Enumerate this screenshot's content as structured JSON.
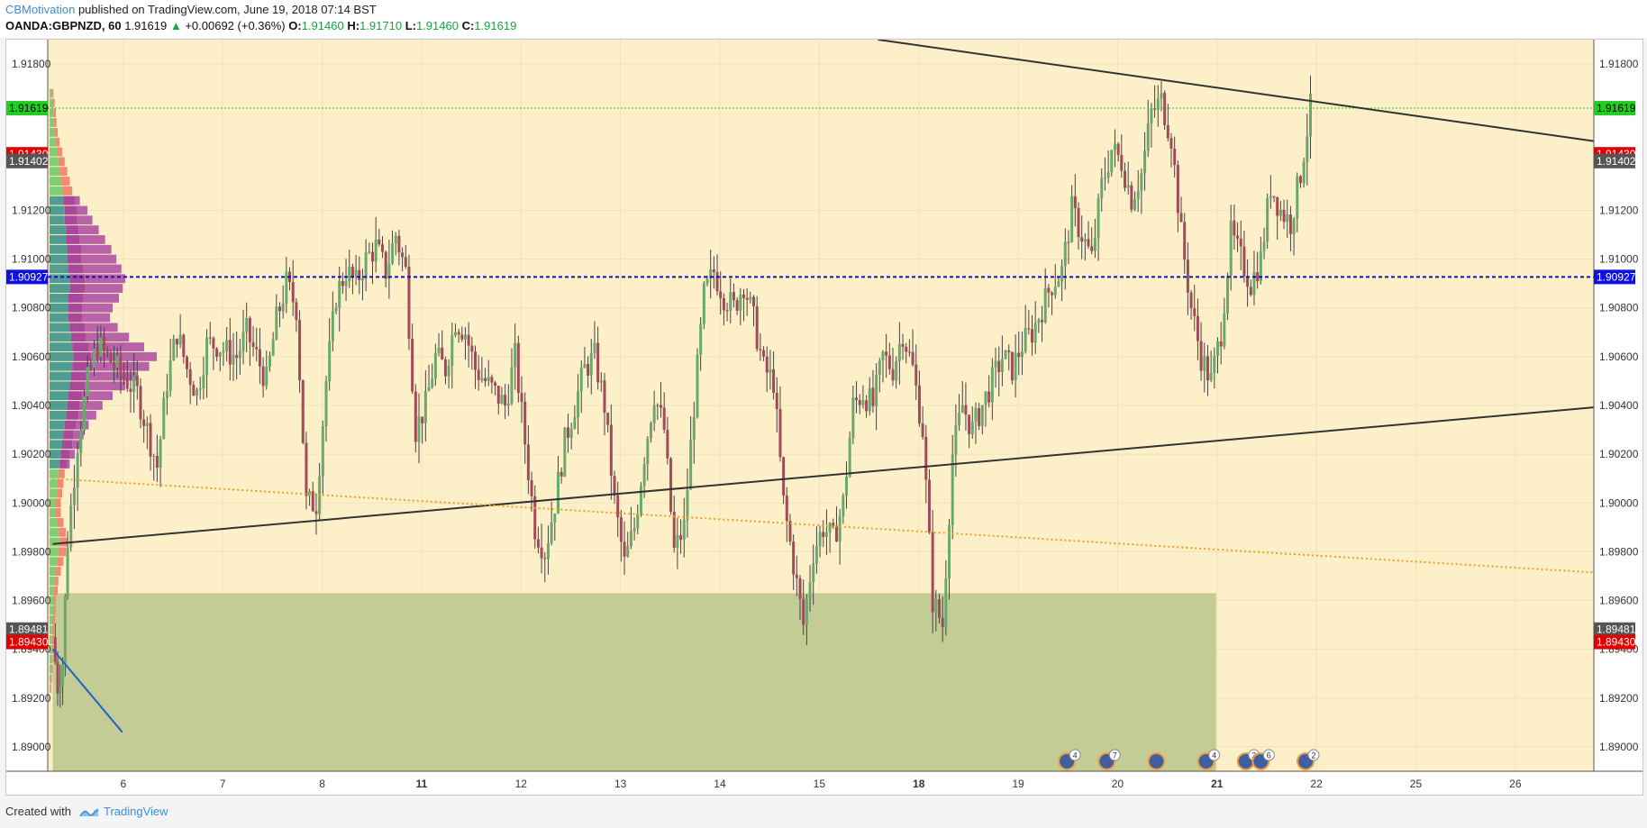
{
  "header": {
    "author": "CBMotivation",
    "published": "published on TradingView.com, June 19, 2018 07:14 BST",
    "symbol": "OANDA:GBPNZD, 60",
    "last": "1.91619",
    "change": "+0.00692 (+0.36%)",
    "o_label": "O:",
    "o_value": "1.91460",
    "h_label": "H:",
    "h_value": "1.91710",
    "l_label": "L:",
    "l_value": "1.91460",
    "c_label": "C:",
    "c_value": "1.91619"
  },
  "footer": {
    "created_with": "Created with",
    "brand": "TradingView"
  },
  "colors": {
    "background_band": "#fdf0c8",
    "zone": "#c2cc94",
    "bull": "#6aa96c",
    "bear": "#a24a5a",
    "price_tag": "#22cc22",
    "red_tag": "#e00000",
    "blue_tag": "#1010e0",
    "dark_tag": "#555555",
    "trendline": "#333333",
    "orange_dotted": "#f0a020",
    "blue_line": "#2060d0"
  },
  "chart_data": {
    "type": "candlestick",
    "ylim": [
      1.889,
      1.919
    ],
    "y_ticks": [
      "1.91800",
      "1.91200",
      "1.91000",
      "1.90800",
      "1.90600",
      "1.90400",
      "1.90200",
      "1.90000",
      "1.89800",
      "1.89600",
      "1.89400",
      "1.89200",
      "1.89000"
    ],
    "x_ticks": [
      {
        "label": "6",
        "bold": false,
        "xv": 0.71
      },
      {
        "label": "7",
        "bold": false,
        "xv": 1.71
      },
      {
        "label": "8",
        "bold": false,
        "xv": 2.71
      },
      {
        "label": "11",
        "bold": true,
        "xv": 3.71
      },
      {
        "label": "12",
        "bold": false,
        "xv": 4.71
      },
      {
        "label": "13",
        "bold": false,
        "xv": 5.71
      },
      {
        "label": "14",
        "bold": false,
        "xv": 6.71
      },
      {
        "label": "15",
        "bold": false,
        "xv": 7.71
      },
      {
        "label": "18",
        "bold": true,
        "xv": 8.71
      },
      {
        "label": "19",
        "bold": false,
        "xv": 9.71
      },
      {
        "label": "20",
        "bold": false,
        "xv": 10.71
      },
      {
        "label": "21",
        "bold": true,
        "xv": 11.71
      },
      {
        "label": "22",
        "bold": false,
        "xv": 12.71
      },
      {
        "label": "25",
        "bold": false,
        "xv": 13.71
      },
      {
        "label": "26",
        "bold": false,
        "xv": 14.71
      }
    ],
    "xlim": [
      -0.05,
      15.5
    ],
    "price_labels": [
      {
        "text": "1.91619",
        "y": 1.91619,
        "kind": "green"
      },
      {
        "text": "1.91430",
        "y": 1.9143,
        "kind": "red"
      },
      {
        "text": "1.91402",
        "y": 1.91402,
        "kind": "dark"
      },
      {
        "text": "1.90927",
        "y": 1.90927,
        "kind": "blue"
      },
      {
        "text": "1.89481",
        "y": 1.89481,
        "kind": "dark"
      },
      {
        "text": "1.89430",
        "y": 1.8943,
        "kind": "red"
      }
    ],
    "current_price": 1.91619,
    "horizontal_level": 1.90927,
    "zone": {
      "x0": 0.0,
      "x1": 11.7,
      "y_top": 1.8963,
      "y_bottom": 1.889
    },
    "trendlines": [
      {
        "x0": 0.0,
        "y0": 1.89832,
        "x1": 15.5,
        "y1": 1.90392,
        "style": "solid"
      },
      {
        "x0": 8.3,
        "y0": 1.919,
        "x1": 15.5,
        "y1": 1.91484,
        "style": "solid"
      },
      {
        "x0": 0.0,
        "y0": 1.901,
        "x1": 15.5,
        "y1": 1.89715,
        "style": "dotted"
      },
      {
        "x0": 0.0,
        "y0": 1.894,
        "x1": 0.7,
        "y1": 1.8906,
        "style": "blue"
      }
    ],
    "event_markers": [
      {
        "xv": 10.2,
        "count": "4"
      },
      {
        "xv": 10.6,
        "count": "7"
      },
      {
        "xv": 11.1,
        "count": ""
      },
      {
        "xv": 11.6,
        "count": "4"
      },
      {
        "xv": 12.0,
        "count": "3"
      },
      {
        "xv": 12.15,
        "count": "6"
      },
      {
        "xv": 12.6,
        "count": "2"
      }
    ],
    "volume_profile": [
      {
        "y": 1.9168,
        "g": 0.02,
        "r": 0.01,
        "v": 0
      },
      {
        "y": 1.9164,
        "g": 0.025,
        "r": 0.015,
        "v": 0
      },
      {
        "y": 1.916,
        "g": 0.03,
        "r": 0.02,
        "v": 0
      },
      {
        "y": 1.9156,
        "g": 0.035,
        "r": 0.02,
        "v": 0
      },
      {
        "y": 1.9152,
        "g": 0.04,
        "r": 0.025,
        "v": 0
      },
      {
        "y": 1.9148,
        "g": 0.05,
        "r": 0.03,
        "v": 0
      },
      {
        "y": 1.9144,
        "g": 0.06,
        "r": 0.04,
        "v": 0
      },
      {
        "y": 1.914,
        "g": 0.07,
        "r": 0.05,
        "v": 0
      },
      {
        "y": 1.9136,
        "g": 0.08,
        "r": 0.06,
        "v": 0
      },
      {
        "y": 1.9132,
        "g": 0.09,
        "r": 0.07,
        "v": 0
      },
      {
        "y": 1.9128,
        "g": 0.1,
        "r": 0.08,
        "v": 0
      },
      {
        "y": 1.9124,
        "g": 0.11,
        "r": 0.09,
        "v": 0.04
      },
      {
        "y": 1.912,
        "g": 0.12,
        "r": 0.1,
        "v": 0.08
      },
      {
        "y": 1.9116,
        "g": 0.12,
        "r": 0.1,
        "v": 0.12
      },
      {
        "y": 1.9112,
        "g": 0.13,
        "r": 0.1,
        "v": 0.16
      },
      {
        "y": 1.9108,
        "g": 0.13,
        "r": 0.11,
        "v": 0.2
      },
      {
        "y": 1.9104,
        "g": 0.14,
        "r": 0.11,
        "v": 0.24
      },
      {
        "y": 1.91,
        "g": 0.14,
        "r": 0.11,
        "v": 0.28
      },
      {
        "y": 1.9096,
        "g": 0.15,
        "r": 0.12,
        "v": 0.3
      },
      {
        "y": 1.9092,
        "g": 0.16,
        "r": 0.12,
        "v": 0.32
      },
      {
        "y": 1.9088,
        "g": 0.16,
        "r": 0.12,
        "v": 0.3
      },
      {
        "y": 1.9084,
        "g": 0.15,
        "r": 0.12,
        "v": 0.28
      },
      {
        "y": 1.908,
        "g": 0.15,
        "r": 0.11,
        "v": 0.24
      },
      {
        "y": 1.9076,
        "g": 0.15,
        "r": 0.11,
        "v": 0.22
      },
      {
        "y": 1.9072,
        "g": 0.16,
        "r": 0.12,
        "v": 0.26
      },
      {
        "y": 1.9068,
        "g": 0.17,
        "r": 0.12,
        "v": 0.34
      },
      {
        "y": 1.9064,
        "g": 0.18,
        "r": 0.13,
        "v": 0.44
      },
      {
        "y": 1.906,
        "g": 0.19,
        "r": 0.14,
        "v": 0.52
      },
      {
        "y": 1.9056,
        "g": 0.18,
        "r": 0.13,
        "v": 0.48
      },
      {
        "y": 1.9052,
        "g": 0.17,
        "r": 0.12,
        "v": 0.4
      },
      {
        "y": 1.9048,
        "g": 0.16,
        "r": 0.12,
        "v": 0.32
      },
      {
        "y": 1.9044,
        "g": 0.15,
        "r": 0.11,
        "v": 0.24
      },
      {
        "y": 1.904,
        "g": 0.14,
        "r": 0.1,
        "v": 0.18
      },
      {
        "y": 1.9036,
        "g": 0.13,
        "r": 0.1,
        "v": 0.14
      },
      {
        "y": 1.9032,
        "g": 0.12,
        "r": 0.09,
        "v": 0.1
      },
      {
        "y": 1.9028,
        "g": 0.11,
        "r": 0.08,
        "v": 0.08
      },
      {
        "y": 1.9024,
        "g": 0.1,
        "r": 0.08,
        "v": 0.06
      },
      {
        "y": 1.902,
        "g": 0.09,
        "r": 0.07,
        "v": 0.04
      },
      {
        "y": 1.9016,
        "g": 0.08,
        "r": 0.06,
        "v": 0.02
      },
      {
        "y": 1.9012,
        "g": 0.07,
        "r": 0.05,
        "v": 0
      },
      {
        "y": 1.9008,
        "g": 0.06,
        "r": 0.05,
        "v": 0
      },
      {
        "y": 1.9004,
        "g": 0.06,
        "r": 0.04,
        "v": 0
      },
      {
        "y": 1.9,
        "g": 0.05,
        "r": 0.04,
        "v": 0
      },
      {
        "y": 1.8996,
        "g": 0.05,
        "r": 0.04,
        "v": 0
      },
      {
        "y": 1.8992,
        "g": 0.06,
        "r": 0.05,
        "v": 0
      },
      {
        "y": 1.8988,
        "g": 0.07,
        "r": 0.06,
        "v": 0
      },
      {
        "y": 1.8984,
        "g": 0.08,
        "r": 0.06,
        "v": 0
      },
      {
        "y": 1.898,
        "g": 0.07,
        "r": 0.06,
        "v": 0
      },
      {
        "y": 1.8976,
        "g": 0.06,
        "r": 0.05,
        "v": 0
      },
      {
        "y": 1.8972,
        "g": 0.05,
        "r": 0.04,
        "v": 0
      },
      {
        "y": 1.8968,
        "g": 0.04,
        "r": 0.03,
        "v": 0
      },
      {
        "y": 1.8964,
        "g": 0.035,
        "r": 0.03,
        "v": 0
      },
      {
        "y": 1.896,
        "g": 0.03,
        "r": 0.02,
        "v": 0
      },
      {
        "y": 1.8956,
        "g": 0.03,
        "r": 0.02,
        "v": 0
      },
      {
        "y": 1.8952,
        "g": 0.025,
        "r": 0.02,
        "v": 0
      },
      {
        "y": 1.8948,
        "g": 0.02,
        "r": 0.015,
        "v": 0
      },
      {
        "y": 1.8944,
        "g": 0.02,
        "r": 0.015,
        "v": 0
      },
      {
        "y": 1.894,
        "g": 0.02,
        "r": 0.01,
        "v": 0
      },
      {
        "y": 1.8936,
        "g": 0.015,
        "r": 0.01,
        "v": 0
      },
      {
        "y": 1.8932,
        "g": 0.015,
        "r": 0.01,
        "v": 0
      },
      {
        "y": 1.8928,
        "g": 0.01,
        "r": 0.01,
        "v": 0
      },
      {
        "y": 1.8924,
        "g": 0.01,
        "r": 0.005,
        "v": 0
      }
    ],
    "price_path": [
      [
        0.0,
        1.8945
      ],
      [
        0.05,
        1.8925
      ],
      [
        0.1,
        1.8935
      ],
      [
        0.15,
        1.8985
      ],
      [
        0.25,
        1.9025
      ],
      [
        0.35,
        1.905
      ],
      [
        0.45,
        1.9065
      ],
      [
        0.55,
        1.906
      ],
      [
        0.65,
        1.9055
      ],
      [
        0.75,
        1.905
      ],
      [
        0.85,
        1.9045
      ],
      [
        0.95,
        1.903
      ],
      [
        1.05,
        1.9015
      ],
      [
        1.15,
        1.905
      ],
      [
        1.25,
        1.907
      ],
      [
        1.35,
        1.9055
      ],
      [
        1.45,
        1.9045
      ],
      [
        1.55,
        1.9065
      ],
      [
        1.65,
        1.9065
      ],
      [
        1.75,
        1.9062
      ],
      [
        1.85,
        1.906
      ],
      [
        1.95,
        1.907
      ],
      [
        2.05,
        1.906
      ],
      [
        2.15,
        1.905
      ],
      [
        2.25,
        1.9075
      ],
      [
        2.35,
        1.909
      ],
      [
        2.45,
        1.908
      ],
      [
        2.55,
        1.9
      ],
      [
        2.65,
        1.9
      ],
      [
        2.75,
        1.905
      ],
      [
        2.85,
        1.9085
      ],
      [
        2.95,
        1.9095
      ],
      [
        3.05,
        1.909
      ],
      [
        3.15,
        1.91
      ],
      [
        3.25,
        1.9105
      ],
      [
        3.35,
        1.9095
      ],
      [
        3.45,
        1.911
      ],
      [
        3.55,
        1.9095
      ],
      [
        3.65,
        1.903
      ],
      [
        3.75,
        1.904
      ],
      [
        3.85,
        1.906
      ],
      [
        3.95,
        1.9055
      ],
      [
        4.05,
        1.9075
      ],
      [
        4.15,
        1.907
      ],
      [
        4.25,
        1.9055
      ],
      [
        4.35,
        1.905
      ],
      [
        4.45,
        1.9045
      ],
      [
        4.55,
        1.904
      ],
      [
        4.65,
        1.906
      ],
      [
        4.75,
        1.9025
      ],
      [
        4.85,
        1.899
      ],
      [
        4.95,
        1.898
      ],
      [
        5.05,
        1.9
      ],
      [
        5.15,
        1.9025
      ],
      [
        5.25,
        1.904
      ],
      [
        5.35,
        1.9055
      ],
      [
        5.45,
        1.906
      ],
      [
        5.55,
        1.904
      ],
      [
        5.65,
        1.9
      ],
      [
        5.75,
        1.8975
      ],
      [
        5.85,
        1.899
      ],
      [
        5.95,
        1.902
      ],
      [
        6.05,
        1.9045
      ],
      [
        6.15,
        1.903
      ],
      [
        6.25,
        1.898
      ],
      [
        6.35,
        1.899
      ],
      [
        6.45,
        1.904
      ],
      [
        6.55,
        1.9085
      ],
      [
        6.65,
        1.9095
      ],
      [
        6.75,
        1.9085
      ],
      [
        6.85,
        1.908
      ],
      [
        6.95,
        1.909
      ],
      [
        7.05,
        1.9075
      ],
      [
        7.15,
        1.9055
      ],
      [
        7.25,
        1.905
      ],
      [
        7.35,
        1.9
      ],
      [
        7.45,
        1.8975
      ],
      [
        7.55,
        1.895
      ],
      [
        7.65,
        1.898
      ],
      [
        7.75,
        1.899
      ],
      [
        7.85,
        1.8985
      ],
      [
        7.95,
        1.9
      ],
      [
        8.05,
        1.904
      ],
      [
        8.15,
        1.9045
      ],
      [
        8.25,
        1.904
      ],
      [
        8.35,
        1.906
      ],
      [
        8.45,
        1.9055
      ],
      [
        8.55,
        1.907
      ],
      [
        8.65,
        1.9055
      ],
      [
        8.75,
        1.903
      ],
      [
        8.85,
        1.896
      ],
      [
        8.95,
        1.895
      ],
      [
        9.05,
        1.902
      ],
      [
        9.15,
        1.904
      ],
      [
        9.25,
        1.903
      ],
      [
        9.35,
        1.904
      ],
      [
        9.45,
        1.905
      ],
      [
        9.55,
        1.906
      ],
      [
        9.65,
        1.9055
      ],
      [
        9.75,
        1.9065
      ],
      [
        9.85,
        1.907
      ],
      [
        9.95,
        1.908
      ],
      [
        10.05,
        1.909
      ],
      [
        10.15,
        1.9095
      ],
      [
        10.25,
        1.912
      ],
      [
        10.35,
        1.911
      ],
      [
        10.45,
        1.91
      ],
      [
        10.55,
        1.913
      ],
      [
        10.65,
        1.9145
      ],
      [
        10.75,
        1.914
      ],
      [
        10.85,
        1.9125
      ],
      [
        10.95,
        1.9135
      ],
      [
        11.05,
        1.916
      ],
      [
        11.15,
        1.9165
      ],
      [
        11.25,
        1.915
      ],
      [
        11.35,
        1.911
      ],
      [
        11.45,
        1.908
      ],
      [
        11.55,
        1.906
      ],
      [
        11.65,
        1.905
      ],
      [
        11.75,
        1.907
      ],
      [
        11.85,
        1.911
      ],
      [
        11.95,
        1.91
      ],
      [
        12.05,
        1.909
      ],
      [
        12.15,
        1.91
      ],
      [
        12.25,
        1.913
      ],
      [
        12.35,
        1.912
      ],
      [
        12.45,
        1.9115
      ],
      [
        12.55,
        1.9135
      ],
      [
        12.65,
        1.9162
      ]
    ]
  }
}
